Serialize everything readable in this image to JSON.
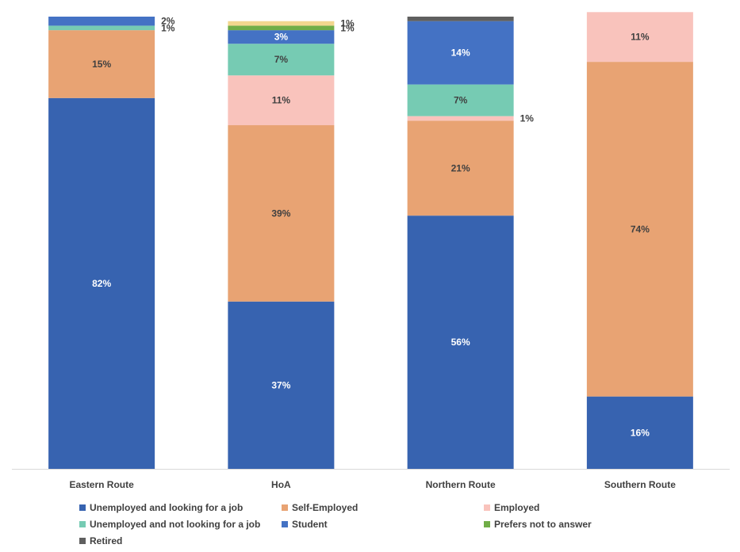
{
  "chart_data": {
    "type": "bar",
    "stacked": true,
    "categories": [
      "Eastern Route",
      "HoA",
      "Northern Route",
      "Southern Route"
    ],
    "ylim": [
      0,
      100
    ],
    "grid": false,
    "legend_position": "bottom",
    "series": [
      {
        "name": "Unemployed and looking for a job",
        "color": "#3763B0",
        "values": [
          82,
          37,
          56,
          16
        ],
        "labels": [
          "82%",
          "37%",
          "56%",
          "16%"
        ]
      },
      {
        "name": "Self-Employed",
        "color": "#E8A373",
        "values": [
          15,
          39,
          21,
          74
        ],
        "labels": [
          "15%",
          "39%",
          "21%",
          "74%"
        ]
      },
      {
        "name": "Employed",
        "color": "#F9C3BC",
        "values": [
          0,
          11,
          1,
          11
        ],
        "labels": [
          "",
          "11%",
          "1%",
          "11%"
        ]
      },
      {
        "name": "Unemployed and not looking for a job",
        "color": "#76CBB3",
        "values": [
          1,
          7,
          7,
          0
        ],
        "labels": [
          "1%",
          "7%",
          "7%",
          ""
        ]
      },
      {
        "name": "Student",
        "color": "#4472C4",
        "values": [
          2,
          3,
          14,
          0
        ],
        "labels": [
          "2%",
          "3%",
          "14%",
          ""
        ]
      },
      {
        "name": "Prefers not to answer",
        "color": "#70AD47",
        "values": [
          0,
          1,
          0,
          0
        ],
        "labels": [
          "",
          "1%",
          "",
          ""
        ]
      },
      {
        "name": "Retired",
        "color": "#5F5F5F",
        "values": [
          0,
          0,
          1,
          0
        ],
        "labels": [
          "",
          "",
          "",
          ""
        ]
      },
      {
        "name": "",
        "color": "#F2D68E",
        "values": [
          0,
          1,
          0,
          0
        ],
        "labels": [
          "",
          "1%",
          "",
          ""
        ]
      }
    ]
  }
}
